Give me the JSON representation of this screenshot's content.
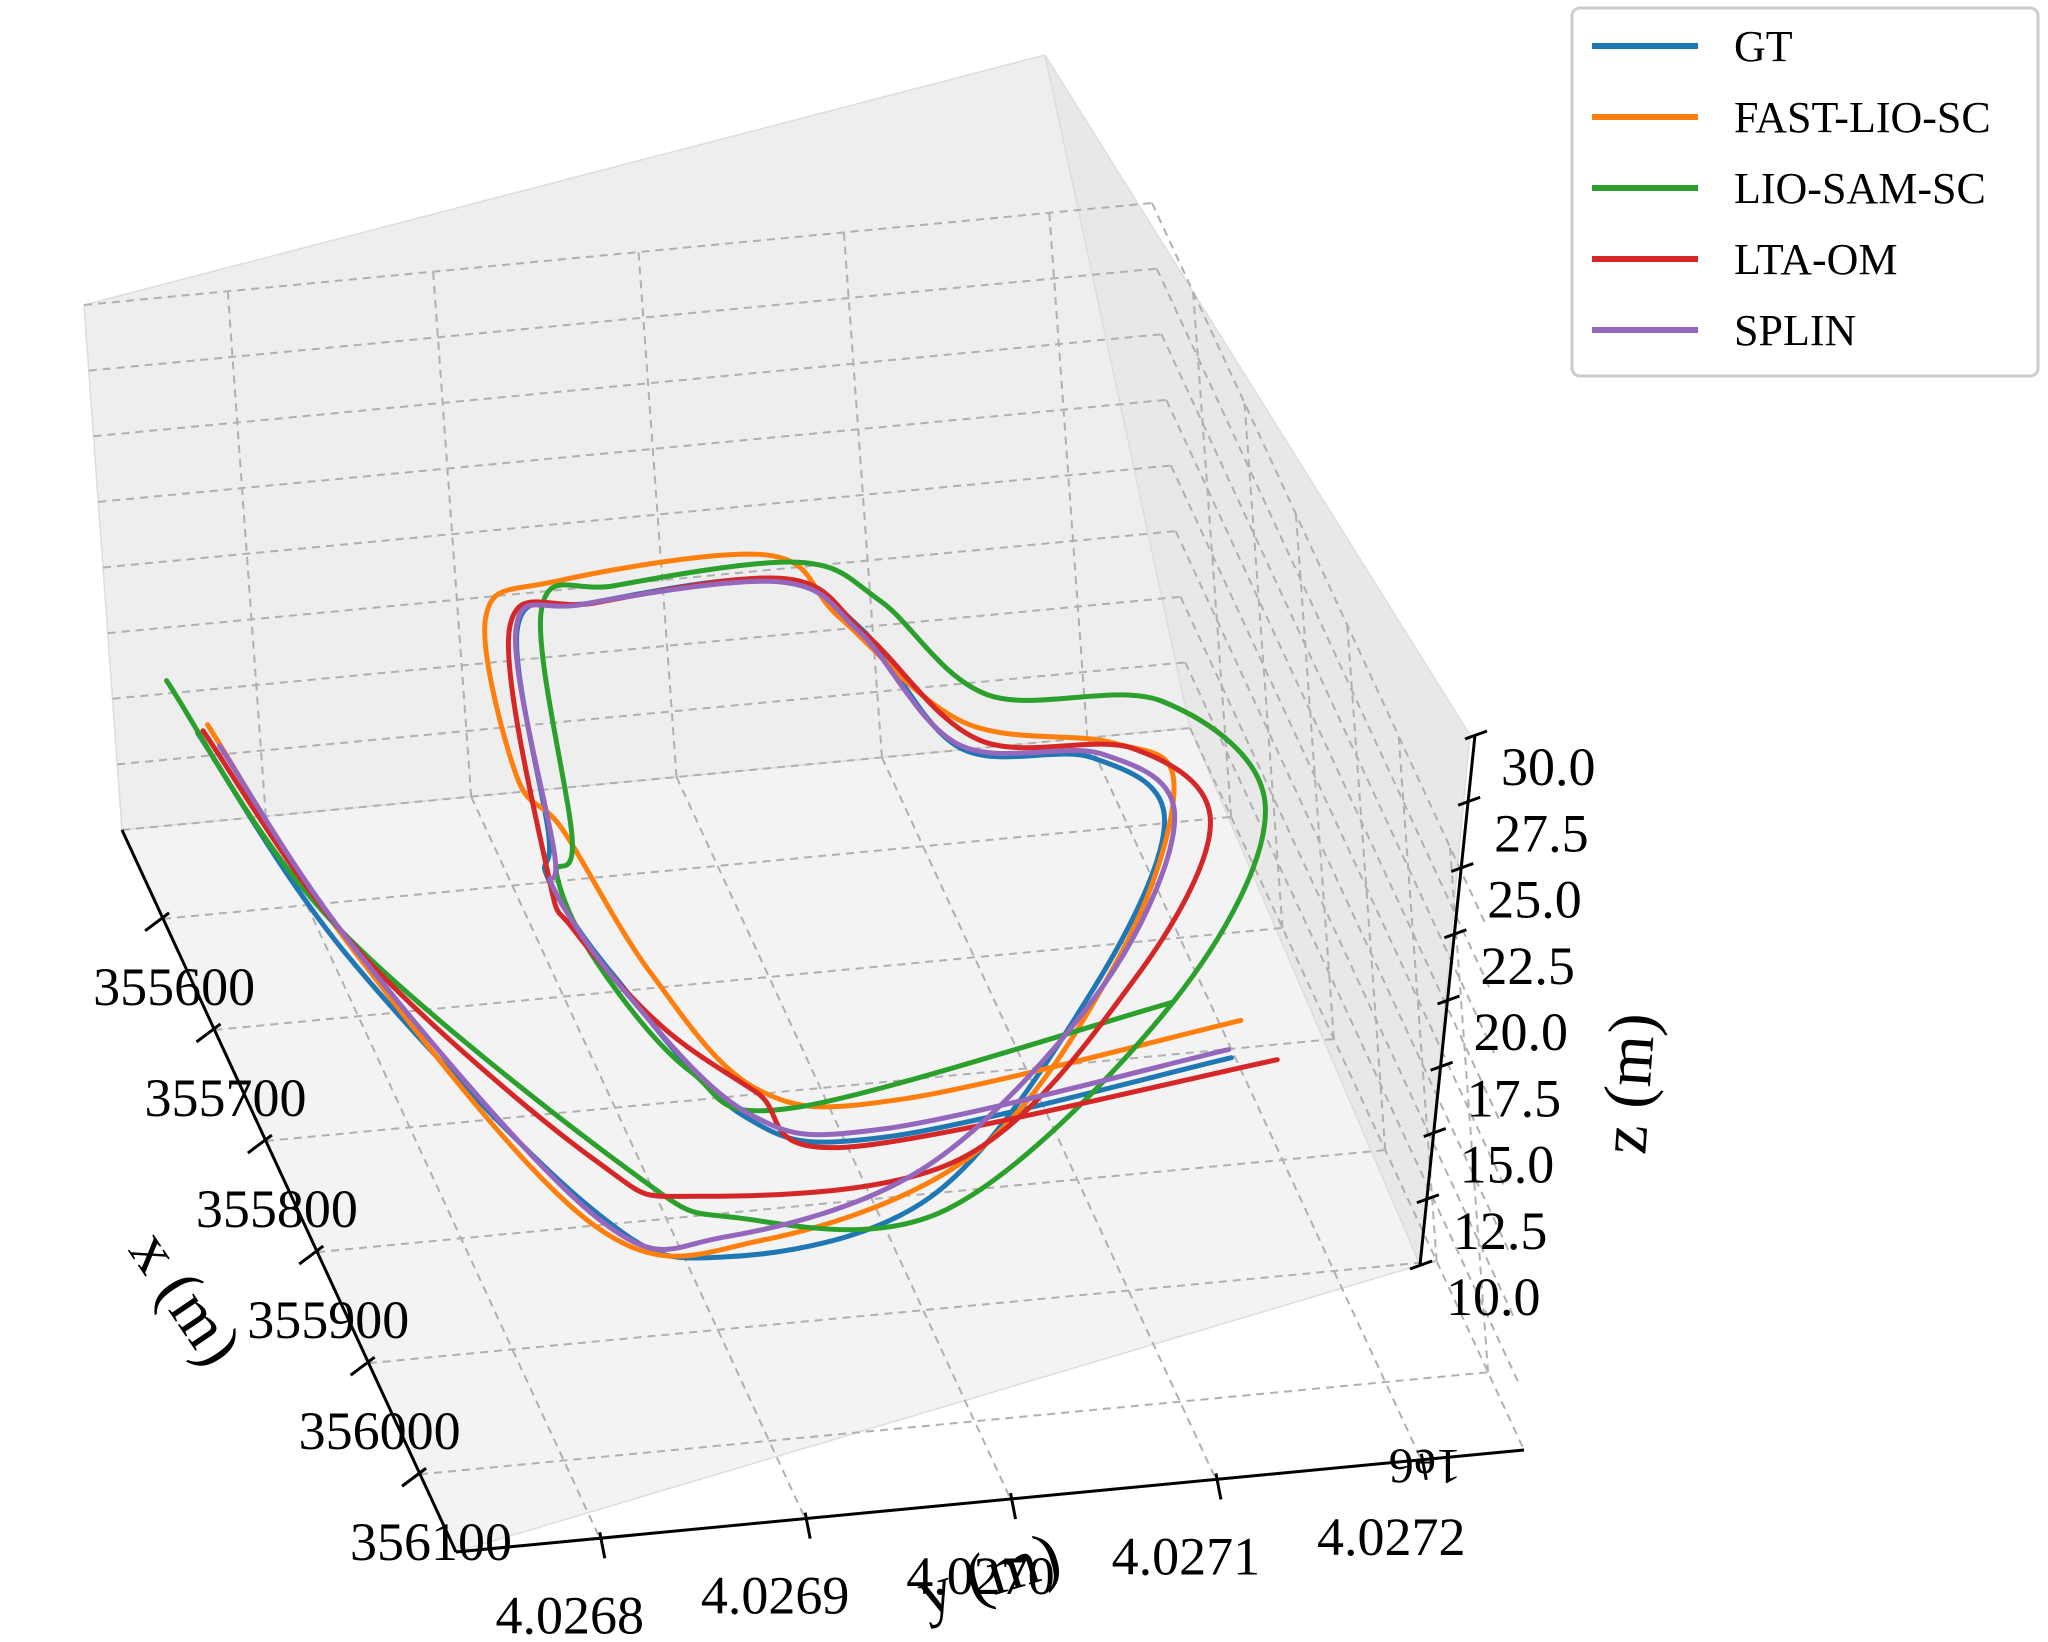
{
  "chart_data": {
    "type": "line",
    "projection": "3d",
    "title": "",
    "xlabel": "x (m)",
    "ylabel": "y (m)",
    "zlabel": "z (m)",
    "x_ticks": [
      "355600",
      "355700",
      "355800",
      "355900",
      "356000",
      "356100"
    ],
    "y_ticks": [
      "4.0268",
      "4.0269",
      "4.0270",
      "4.0271",
      "4.0272"
    ],
    "y_offset": "1e6",
    "z_ticks": [
      "10.0",
      "12.5",
      "15.0",
      "17.5",
      "20.0",
      "22.5",
      "25.0",
      "27.5",
      "30.0"
    ],
    "xlim": [
      355520,
      356170
    ],
    "ylim": [
      4026730,
      4027250
    ],
    "zlim": [
      10.0,
      30.0
    ],
    "grid": true,
    "legend_position": "top-right",
    "colors": {
      "GT": "#1f77b4",
      "FAST-LIO-SC": "#ff7f0e",
      "LIO-SAM-SC": "#2ca02c",
      "LTA-OM": "#d62728",
      "SPLIN": "#9467bd"
    },
    "series": [
      {
        "name": "GT",
        "x": [
          355625,
          355830,
          356070,
          356120,
          356085,
          355920,
          355780,
          355720,
          355700,
          355590,
          355540,
          355545,
          355560,
          355740,
          355780,
          355870,
          356000,
          356030,
          355990
        ],
        "y": [
          4026748,
          4026770,
          4026830,
          4026880,
          4026990,
          4027110,
          4027180,
          4027160,
          4027100,
          4027080,
          4027050,
          4026960,
          4026920,
          4026890,
          4026880,
          4026890,
          4026920,
          4026980,
          4027160
        ],
        "z": [
          18.0,
          18.0,
          18.0,
          18.0,
          18.0,
          18.0,
          18.0,
          18.0,
          18.0,
          18.0,
          18.0,
          18.0,
          18.0,
          18.0,
          18.0,
          18.0,
          18.0,
          18.0,
          18.0
        ]
      },
      {
        "name": "FAST-LIO-SC",
        "x": [
          355630,
          355840,
          356095,
          356120,
          356060,
          355900,
          355760,
          355720,
          355690,
          355590,
          355530,
          355535,
          355560,
          355700,
          355750,
          355880,
          355990,
          356010,
          355970
        ],
        "y": [
          4026752,
          4026772,
          4026825,
          4026900,
          4027020,
          4027130,
          4027190,
          4027170,
          4027105,
          4027070,
          4027050,
          4026945,
          4026905,
          4026885,
          4026895,
          4026905,
          4026930,
          4026995,
          4027170
        ],
        "z": [
          18.5,
          18.5,
          18.5,
          18.5,
          18.5,
          18.5,
          18.5,
          18.5,
          18.5,
          18.5,
          18.5,
          18.5,
          18.5,
          18.5,
          18.5,
          18.5,
          18.5,
          18.5,
          18.5
        ]
      },
      {
        "name": "LIO-SAM-SC",
        "x": [
          355600,
          355820,
          356060,
          356110,
          356120,
          355960,
          355800,
          355700,
          355680,
          355590,
          355550,
          355555,
          355570,
          355770,
          355800,
          355880,
          355980,
          356020,
          355960
        ],
        "y": [
          4026740,
          4026765,
          4026850,
          4026890,
          4026990,
          4027140,
          4027225,
          4027200,
          4027120,
          4027090,
          4027060,
          4026970,
          4026930,
          4026895,
          4026880,
          4026880,
          4026900,
          4026940,
          4027140
        ],
        "z": [
          19.0,
          19.0,
          19.0,
          19.0,
          19.0,
          19.0,
          19.0,
          19.0,
          19.0,
          19.0,
          19.0,
          19.0,
          19.0,
          19.0,
          19.0,
          19.0,
          19.0,
          19.0,
          19.0
        ]
      },
      {
        "name": "LTA-OM",
        "x": [
          355628,
          355830,
          356030,
          356070,
          356060,
          355920,
          355790,
          355720,
          355700,
          355600,
          355545,
          355550,
          355565,
          355780,
          355830,
          355920,
          355985,
          356040,
          356000
        ],
        "y": [
          4026750,
          4026775,
          4026840,
          4026880,
          4027010,
          4027130,
          4027200,
          4027180,
          4027110,
          4027080,
          4027055,
          4026960,
          4026915,
          4026880,
          4026880,
          4026900,
          4026930,
          4026960,
          4027180
        ],
        "z": [
          18.2,
          18.2,
          18.2,
          18.2,
          18.2,
          18.2,
          18.2,
          18.2,
          18.2,
          18.2,
          18.2,
          18.2,
          18.2,
          18.2,
          18.2,
          18.2,
          18.2,
          18.2,
          18.2
        ]
      },
      {
        "name": "SPLIN",
        "x": [
          355640,
          355830,
          356080,
          356105,
          356060,
          355920,
          355780,
          355720,
          355700,
          355595,
          355545,
          355548,
          355565,
          355760,
          355790,
          355880,
          356000,
          356025,
          355985
        ],
        "y": [
          4026755,
          4026775,
          4026830,
          4026885,
          4026995,
          4027115,
          4027185,
          4027165,
          4027100,
          4027078,
          4027052,
          4026955,
          4026918,
          4026888,
          4026880,
          4026890,
          4026922,
          4026982,
          4027160
        ],
        "z": [
          18.1,
          18.1,
          18.1,
          18.1,
          18.1,
          18.1,
          18.1,
          18.1,
          18.1,
          18.1,
          18.1,
          18.1,
          18.1,
          18.1,
          18.1,
          18.1,
          18.1,
          18.1,
          18.1
        ]
      }
    ]
  }
}
